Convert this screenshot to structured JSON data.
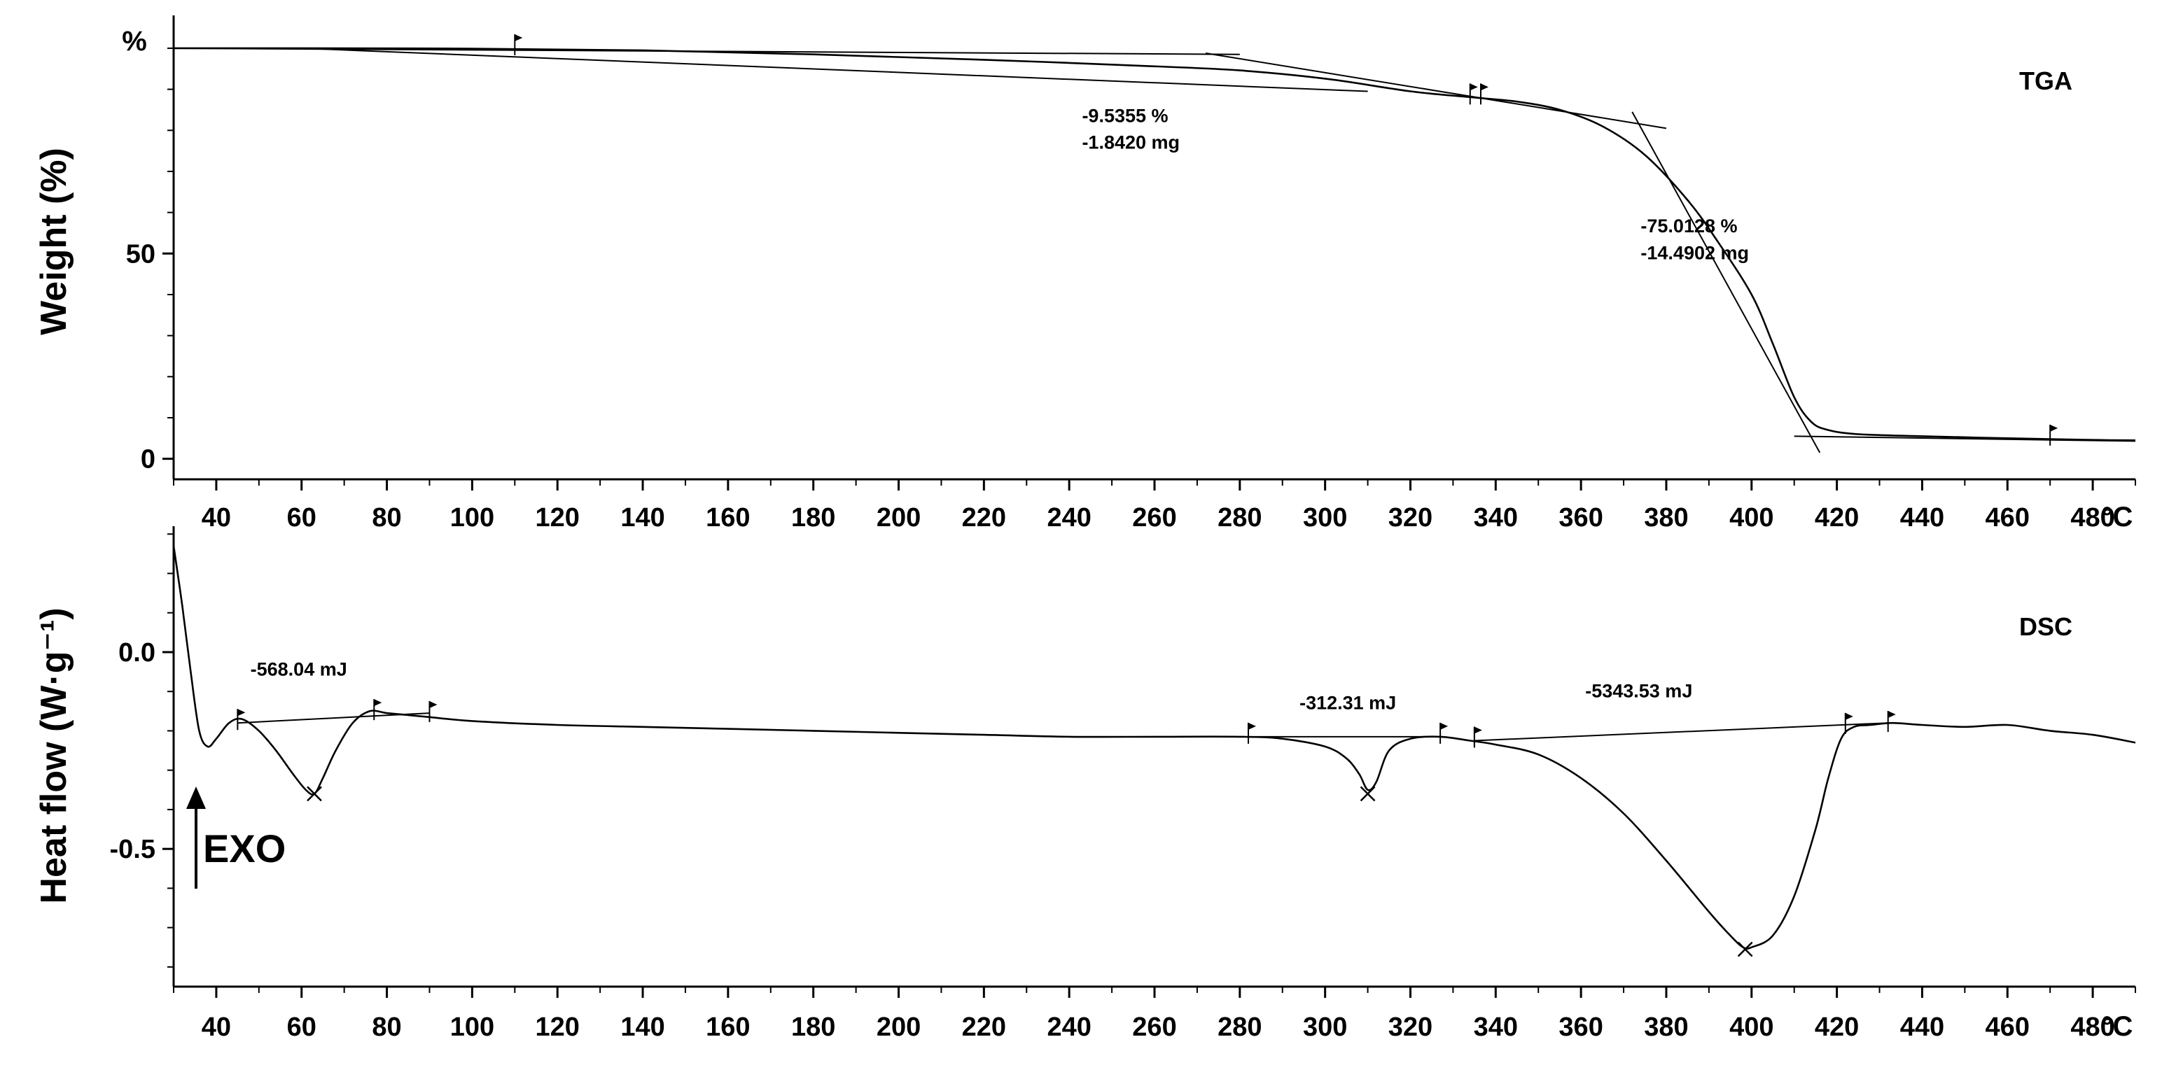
{
  "chart_data": [
    {
      "type": "line",
      "panel_label": "TGA",
      "ylabel": "Weight (%)",
      "y_unit_label": "%",
      "x_unit_label": "°C",
      "xlim": [
        30,
        490
      ],
      "ylim": [
        -5,
        108
      ],
      "x_ticks": [
        40,
        60,
        80,
        100,
        120,
        140,
        160,
        180,
        200,
        220,
        240,
        260,
        280,
        300,
        320,
        340,
        360,
        380,
        400,
        420,
        440,
        460,
        480
      ],
      "y_ticks": [
        0,
        50
      ],
      "grid": false,
      "series": [
        {
          "x": [
            30,
            60,
            100,
            140,
            180,
            220,
            260,
            280,
            300,
            320,
            335,
            345,
            355,
            365,
            375,
            385,
            392,
            400,
            405,
            410,
            414,
            418,
            425,
            440,
            460,
            480,
            490
          ],
          "y": [
            100,
            100,
            99.9,
            99.5,
            98.5,
            97.2,
            95.6,
            94.6,
            92.6,
            89.5,
            88.0,
            87.0,
            85.0,
            81.0,
            74.0,
            63.0,
            53.0,
            40.0,
            28.0,
            15.0,
            9.0,
            7.0,
            6.0,
            5.5,
            5.0,
            4.6,
            4.5
          ]
        }
      ],
      "construction_lines": [
        {
          "x": [
            30,
            280
          ],
          "y": [
            100,
            98.5
          ]
        },
        {
          "x": [
            60,
            310
          ],
          "y": [
            100,
            89.5
          ]
        },
        {
          "x": [
            272,
            380
          ],
          "y": [
            98.8,
            80.5
          ]
        },
        {
          "x": [
            372,
            416
          ],
          "y": [
            84.5,
            1.5
          ]
        },
        {
          "x": [
            410,
            490
          ],
          "y": [
            5.5,
            4.3
          ]
        }
      ],
      "annotations": [
        {
          "text": "-9.5355 %",
          "x": 243,
          "y": 82
        },
        {
          "text": "-1.8420 mg",
          "x": 243,
          "y": 75.5
        },
        {
          "text": "-75.0128 %",
          "x": 374,
          "y": 55.2
        },
        {
          "text": "-14.4902 mg",
          "x": 374,
          "y": 48.6
        }
      ],
      "flags": [
        {
          "x": 110,
          "y": 100
        },
        {
          "x": 334,
          "y": 88
        },
        {
          "x": 336.5,
          "y": 88
        },
        {
          "x": 470,
          "y": 4.9
        }
      ]
    },
    {
      "type": "line",
      "panel_label": "DSC",
      "ylabel": "Heat flow (W·g⁻¹)",
      "x_unit_label": "°C",
      "xlim": [
        30,
        490
      ],
      "ylim": [
        -0.85,
        0.32
      ],
      "x_ticks": [
        40,
        60,
        80,
        100,
        120,
        140,
        160,
        180,
        200,
        220,
        240,
        260,
        280,
        300,
        320,
        340,
        360,
        380,
        400,
        420,
        440,
        460,
        480
      ],
      "y_ticks": [
        0.0,
        -0.5
      ],
      "grid": false,
      "series": [
        {
          "x": [
            30,
            32,
            34,
            36,
            38,
            40,
            43,
            46,
            50,
            54,
            58,
            61,
            63,
            65,
            68,
            72,
            76,
            80,
            85,
            90,
            100,
            120,
            140,
            160,
            180,
            200,
            220,
            240,
            260,
            280,
            290,
            300,
            305,
            308,
            310,
            312,
            315,
            320,
            327,
            334,
            340,
            350,
            360,
            370,
            380,
            390,
            395,
            398,
            400,
            405,
            410,
            415,
            418,
            421,
            424,
            428,
            433,
            440,
            450,
            460,
            470,
            480,
            490
          ],
          "y": [
            0.27,
            0.12,
            -0.05,
            -0.2,
            -0.24,
            -0.22,
            -0.18,
            -0.17,
            -0.2,
            -0.25,
            -0.31,
            -0.35,
            -0.36,
            -0.32,
            -0.25,
            -0.18,
            -0.15,
            -0.155,
            -0.16,
            -0.165,
            -0.175,
            -0.185,
            -0.19,
            -0.195,
            -0.2,
            -0.205,
            -0.21,
            -0.215,
            -0.215,
            -0.215,
            -0.22,
            -0.24,
            -0.27,
            -0.31,
            -0.35,
            -0.33,
            -0.25,
            -0.22,
            -0.215,
            -0.225,
            -0.235,
            -0.26,
            -0.32,
            -0.41,
            -0.53,
            -0.66,
            -0.72,
            -0.75,
            -0.75,
            -0.72,
            -0.62,
            -0.45,
            -0.32,
            -0.22,
            -0.19,
            -0.185,
            -0.18,
            -0.185,
            -0.19,
            -0.185,
            -0.2,
            -0.21,
            -0.23
          ]
        }
      ],
      "construction_lines": [
        {
          "x": [
            45,
            90
          ],
          "y": [
            -0.18,
            -0.155
          ]
        },
        {
          "x": [
            282,
            327
          ],
          "y": [
            -0.215,
            -0.215
          ]
        },
        {
          "x": [
            335,
            432
          ],
          "y": [
            -0.225,
            -0.18
          ]
        }
      ],
      "annotations": [
        {
          "text": "-568.04 mJ",
          "x": 48,
          "y": -0.06
        },
        {
          "text": "-312.31 mJ",
          "x": 294,
          "y": -0.145
        },
        {
          "text": "-5343.53 mJ",
          "x": 361,
          "y": -0.115
        }
      ],
      "peak_markers": [
        {
          "x": 63,
          "y": -0.36
        },
        {
          "x": 310,
          "y": -0.36
        },
        {
          "x": 398.5,
          "y": -0.755
        }
      ],
      "flags": [
        {
          "x": 45,
          "y": -0.18
        },
        {
          "x": 77,
          "y": -0.155
        },
        {
          "x": 90,
          "y": -0.16
        },
        {
          "x": 282,
          "y": -0.215
        },
        {
          "x": 327,
          "y": -0.215
        },
        {
          "x": 335,
          "y": -0.225
        },
        {
          "x": 422,
          "y": -0.19
        },
        {
          "x": 432,
          "y": -0.185
        }
      ],
      "exo_label": "EXO"
    }
  ]
}
